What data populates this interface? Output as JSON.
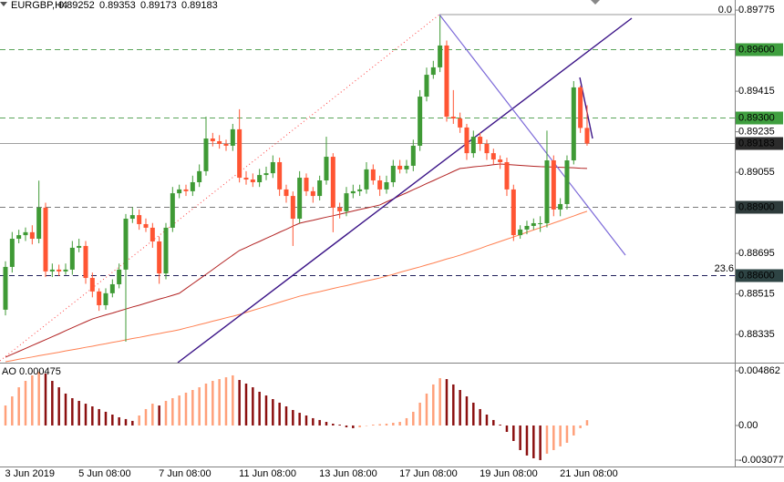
{
  "chart_data": [
    {
      "type": "candlestick",
      "symbol": "EURGBP,H4",
      "categories": [
        "3 Jun 2019",
        null,
        null,
        null,
        null,
        null,
        null,
        null,
        null,
        null,
        null,
        "5 Jun 08:00",
        null,
        null,
        null,
        null,
        null,
        null,
        null,
        null,
        null,
        null,
        null,
        "7 Jun 08:00",
        null,
        null,
        null,
        null,
        null,
        null,
        null,
        null,
        null,
        null,
        null,
        "11 Jun 08:00",
        null,
        null,
        null,
        null,
        null,
        null,
        null,
        null,
        null,
        null,
        null,
        "13 Jun 08:00",
        null,
        null,
        null,
        null,
        null,
        null,
        null,
        null,
        null,
        null,
        null,
        "17 Jun 08:00",
        null,
        null,
        null,
        null,
        null,
        null,
        null,
        null,
        null,
        null,
        null,
        "19 Jun 08:00",
        null,
        null,
        null,
        null,
        null,
        null,
        null,
        null,
        null,
        null,
        null,
        "21 Jun 08:00",
        null,
        null,
        null,
        null
      ],
      "open": [
        0.88445,
        0.88635,
        0.8876,
        0.88776,
        0.88789,
        0.8876,
        0.88898,
        0.88615,
        0.88623,
        0.88615,
        0.88623,
        0.8872,
        0.88728,
        0.88586,
        0.88526,
        0.88465,
        0.88518,
        0.88558,
        0.88623,
        0.88849,
        0.88865,
        0.88825,
        0.88809,
        0.88748,
        0.88606,
        0.88809,
        0.88962,
        0.88979,
        0.88971,
        0.89011,
        0.8906,
        0.89205,
        0.89193,
        0.89181,
        0.89173,
        0.89246,
        0.89031,
        0.89023,
        0.89011,
        0.89043,
        0.89051,
        0.891,
        0.88979,
        0.8895,
        0.88849,
        0.89031,
        0.88971,
        0.8895,
        0.89019,
        0.89124,
        0.88898,
        0.88882,
        0.88962,
        0.88971,
        0.88979,
        0.89068,
        0.89019,
        0.88979,
        0.89011,
        0.89084,
        0.89068,
        0.89084,
        0.89173,
        0.89391,
        0.89488,
        0.89521,
        0.89618,
        0.89302,
        0.89294,
        0.89254,
        0.8914,
        0.89213,
        0.89181,
        0.8914,
        0.89112,
        0.891,
        0.88979,
        0.88776,
        0.88801,
        0.88817,
        0.88829,
        0.88829,
        0.89108,
        0.8889,
        0.88914,
        0.89108,
        0.89432,
        0.89252
      ],
      "high": [
        0.8866,
        0.8879,
        0.888,
        0.8881,
        0.8882,
        0.89018,
        0.8892,
        0.8865,
        0.88645,
        0.8865,
        0.8875,
        0.8876,
        0.8875,
        0.8861,
        0.8854,
        0.8854,
        0.8858,
        0.8865,
        0.8887,
        0.889,
        0.8889,
        0.8885,
        0.8883,
        0.8877,
        0.8883,
        0.8899,
        0.89,
        0.89,
        0.8904,
        0.8909,
        0.89302,
        0.8923,
        0.8922,
        0.892,
        0.8927,
        0.89335,
        0.8906,
        0.8905,
        0.8907,
        0.8908,
        0.8913,
        0.8912,
        0.89,
        0.8897,
        0.8906,
        0.8905,
        0.8899,
        0.8904,
        0.89213,
        0.8914,
        0.8892,
        0.8899,
        0.89,
        0.89,
        0.891,
        0.8909,
        0.8904,
        0.8904,
        0.8911,
        0.8911,
        0.8911,
        0.892,
        0.8942,
        0.8952,
        0.8955,
        0.8975,
        0.8964,
        0.8942,
        0.8932,
        0.8927,
        0.8924,
        0.8923,
        0.892,
        0.8916,
        0.8913,
        0.8912,
        0.89,
        0.8882,
        0.8884,
        0.8885,
        0.8886,
        0.8924,
        0.8913,
        0.8894,
        0.8913,
        0.8946,
        0.8944,
        0.89353
      ],
      "low": [
        0.8842,
        0.8861,
        0.8874,
        0.8875,
        0.88735,
        0.8874,
        0.8859,
        0.8859,
        0.88595,
        0.886,
        0.886,
        0.887,
        0.8856,
        0.885,
        0.8844,
        0.88445,
        0.885,
        0.8854,
        0.88303,
        0.8883,
        0.888,
        0.8879,
        0.8872,
        0.8856,
        0.8858,
        0.8879,
        0.8894,
        0.8895,
        0.8895,
        0.8899,
        0.8904,
        0.8917,
        0.8916,
        0.8915,
        0.8915,
        0.8901,
        0.89,
        0.8899,
        0.8899,
        0.8902,
        0.8903,
        0.8895,
        0.8892,
        0.88728,
        0.8883,
        0.8895,
        0.8892,
        0.8893,
        0.89,
        0.88789,
        0.8885,
        0.8886,
        0.8894,
        0.8895,
        0.8896,
        0.89,
        0.8895,
        0.8896,
        0.8899,
        0.8905,
        0.8905,
        0.8906,
        0.8915,
        0.8937,
        0.8947,
        0.895,
        0.8928,
        0.8927,
        0.8923,
        0.8911,
        0.8912,
        0.8915,
        0.8911,
        0.8909,
        0.8907,
        0.8895,
        0.8875,
        0.8876,
        0.8878,
        0.888,
        0.8879,
        0.8881,
        0.8886,
        0.8886,
        0.8889,
        0.8909,
        0.8923,
        0.89173
      ],
      "close": [
        0.88635,
        0.8876,
        0.88776,
        0.88789,
        0.8876,
        0.88898,
        0.88615,
        0.88623,
        0.88615,
        0.88623,
        0.8872,
        0.88728,
        0.88586,
        0.88526,
        0.88465,
        0.88518,
        0.88558,
        0.88623,
        0.88849,
        0.88865,
        0.88825,
        0.88809,
        0.88748,
        0.88606,
        0.88809,
        0.88962,
        0.88979,
        0.88971,
        0.89011,
        0.8906,
        0.89205,
        0.89193,
        0.89181,
        0.89173,
        0.89246,
        0.89031,
        0.89023,
        0.89011,
        0.89043,
        0.89051,
        0.891,
        0.88979,
        0.8895,
        0.88849,
        0.89031,
        0.88971,
        0.8895,
        0.89019,
        0.89124,
        0.88898,
        0.88882,
        0.88962,
        0.88971,
        0.88979,
        0.89068,
        0.89019,
        0.88979,
        0.89011,
        0.89084,
        0.89068,
        0.89084,
        0.89173,
        0.89391,
        0.89488,
        0.89521,
        0.89618,
        0.89302,
        0.89294,
        0.89254,
        0.8914,
        0.89213,
        0.89181,
        0.8914,
        0.89112,
        0.891,
        0.88979,
        0.88776,
        0.88801,
        0.88817,
        0.88829,
        0.88829,
        0.89108,
        0.8889,
        0.88914,
        0.89108,
        0.89432,
        0.89252,
        0.89183
      ],
      "up_color": "#3f9a35",
      "down_color": "#ff5533",
      "lines": [
        {
          "color": "#b22222",
          "values": [
            0.88234,
            0.88247,
            0.8826,
            0.88273,
            0.88286,
            0.88299,
            0.88312,
            0.88325,
            0.88338,
            0.88352,
            0.88365,
            0.88378,
            0.88391,
            0.88404,
            0.88413,
            0.88422,
            0.8843,
            0.88439,
            0.88448,
            0.88457,
            0.88465,
            0.88474,
            0.88483,
            0.88492,
            0.885,
            0.88509,
            0.88518,
            0.88539,
            0.8856,
            0.88581,
            0.88602,
            0.88623,
            0.88645,
            0.88666,
            0.88687,
            0.88708,
            0.88721,
            0.88735,
            0.88748,
            0.88762,
            0.88775,
            0.88789,
            0.88802,
            0.88816,
            0.88829,
            0.88836,
            0.88842,
            0.88849,
            0.88856,
            0.88862,
            0.88869,
            0.88876,
            0.88883,
            0.8889,
            0.88896,
            0.88903,
            0.8891,
            0.88924,
            0.88937,
            0.88951,
            0.88964,
            0.88978,
            0.88991,
            0.89005,
            0.89018,
            0.89032,
            0.89045,
            0.89059,
            0.89072,
            0.89075,
            0.89079,
            0.89082,
            0.89085,
            0.89089,
            0.89092,
            0.8909,
            0.89088,
            0.89086,
            0.89084,
            0.89082,
            0.8908,
            0.89079,
            0.89078,
            0.89077,
            0.89076,
            0.89075,
            0.89073,
            0.89072
          ]
        },
        {
          "color": "#ff7f50",
          "values": [
            0.88214,
            0.88219,
            0.88225,
            0.8823,
            0.88235,
            0.88241,
            0.88246,
            0.88251,
            0.88256,
            0.88262,
            0.88267,
            0.88272,
            0.88278,
            0.88283,
            0.88289,
            0.88294,
            0.883,
            0.88305,
            0.88311,
            0.88317,
            0.88322,
            0.88328,
            0.88334,
            0.88339,
            0.88345,
            0.8835,
            0.88356,
            0.88364,
            0.88371,
            0.88379,
            0.88386,
            0.88394,
            0.88401,
            0.88409,
            0.88416,
            0.88424,
            0.88433,
            0.88442,
            0.88451,
            0.8846,
            0.88469,
            0.88478,
            0.88487,
            0.88496,
            0.88505,
            0.88512,
            0.88519,
            0.88525,
            0.88532,
            0.88539,
            0.88546,
            0.88552,
            0.88559,
            0.88566,
            0.88573,
            0.88579,
            0.88586,
            0.88594,
            0.88602,
            0.88611,
            0.88619,
            0.88627,
            0.88635,
            0.88644,
            0.88652,
            0.88661,
            0.8867,
            0.88678,
            0.88687,
            0.88697,
            0.88707,
            0.88717,
            0.88728,
            0.88738,
            0.88748,
            0.88758,
            0.88768,
            0.88778,
            0.88789,
            0.88799,
            0.88809,
            0.88819,
            0.8883,
            0.8884,
            0.88851,
            0.88861,
            0.88872,
            0.88882
          ]
        }
      ],
      "levels": [
        {
          "value": 0.896,
          "label": "0.89600",
          "line_color": "#5aa55a",
          "box_color": "#3f9f3f",
          "text_color": "#000000",
          "dashed": true
        },
        {
          "value": 0.893,
          "label": "0.89300",
          "line_color": "#5aa55a",
          "box_color": "#3f9f3f",
          "text_color": "#000000",
          "dashed": true
        },
        {
          "value": 0.889,
          "label": "0.88900",
          "line_color": "#7a7a7a",
          "box_color": "#2e3b3b",
          "text_color": "#ffffff",
          "dashed": true
        },
        {
          "value": 0.886,
          "label": "0.88600",
          "line_color": "#1e1e5a",
          "box_color": "#2e4444",
          "text_color": "#ffffff",
          "dashed": true
        }
      ],
      "last_price": {
        "line_color": "#a0a0a0",
        "box_color": "#2b2b2b",
        "text_color": "#ffffff"
      },
      "annotations": [
        "0.0",
        "23.6"
      ],
      "ylim": [
        0.8821,
        0.8982
      ],
      "yticks": [
        0.89775,
        0.89415,
        0.89235,
        0.89055,
        0.88695,
        0.88515,
        0.88335
      ]
    },
    {
      "type": "bar",
      "label": "AO",
      "values": [
        0.00178,
        0.00259,
        0.0034,
        0.00397,
        0.00446,
        0.00478,
        0.00462,
        0.00397,
        0.0034,
        0.00284,
        0.00243,
        0.00219,
        0.00194,
        0.0017,
        0.00146,
        0.00122,
        0.00097,
        0.00073,
        0.00057,
        0.00041,
        0.00089,
        0.00146,
        0.00194,
        0.00178,
        0.00219,
        0.00243,
        0.00267,
        0.00292,
        0.00316,
        0.0034,
        0.00373,
        0.00397,
        0.00413,
        0.00429,
        0.00446,
        0.00405,
        0.00373,
        0.0034,
        0.003,
        0.00267,
        0.00235,
        0.00203,
        0.0017,
        0.00138,
        0.00113,
        0.00089,
        0.00065,
        0.00049,
        0.00032,
        0.00016,
        8e-05,
        -0.00016,
        -0.00024,
        -0.00016,
        -4e-05,
        8e-05,
        0.00012,
        0.00016,
        0.00024,
        0.00032,
        0.00065,
        0.00122,
        0.00203,
        0.00284,
        0.00365,
        0.00421,
        0.00413,
        0.00365,
        0.00316,
        0.00259,
        0.00203,
        0.00146,
        0.00097,
        0.00049,
        8e-05,
        -0.00057,
        -0.00138,
        -0.00219,
        -0.00267,
        -0.00292,
        -0.00308,
        -0.00251,
        -0.00219,
        -0.00186,
        -0.00154,
        -0.00089,
        -0.00024,
        0.000475
      ],
      "up_color": "#ffa07a",
      "down_color": "#8b1010",
      "ylim": [
        -0.00365,
        0.00543
      ],
      "yticks": [
        0.004862,
        {
          "value": 0,
          "label": "0.00"
        },
        -0.003077
      ]
    }
  ]
}
